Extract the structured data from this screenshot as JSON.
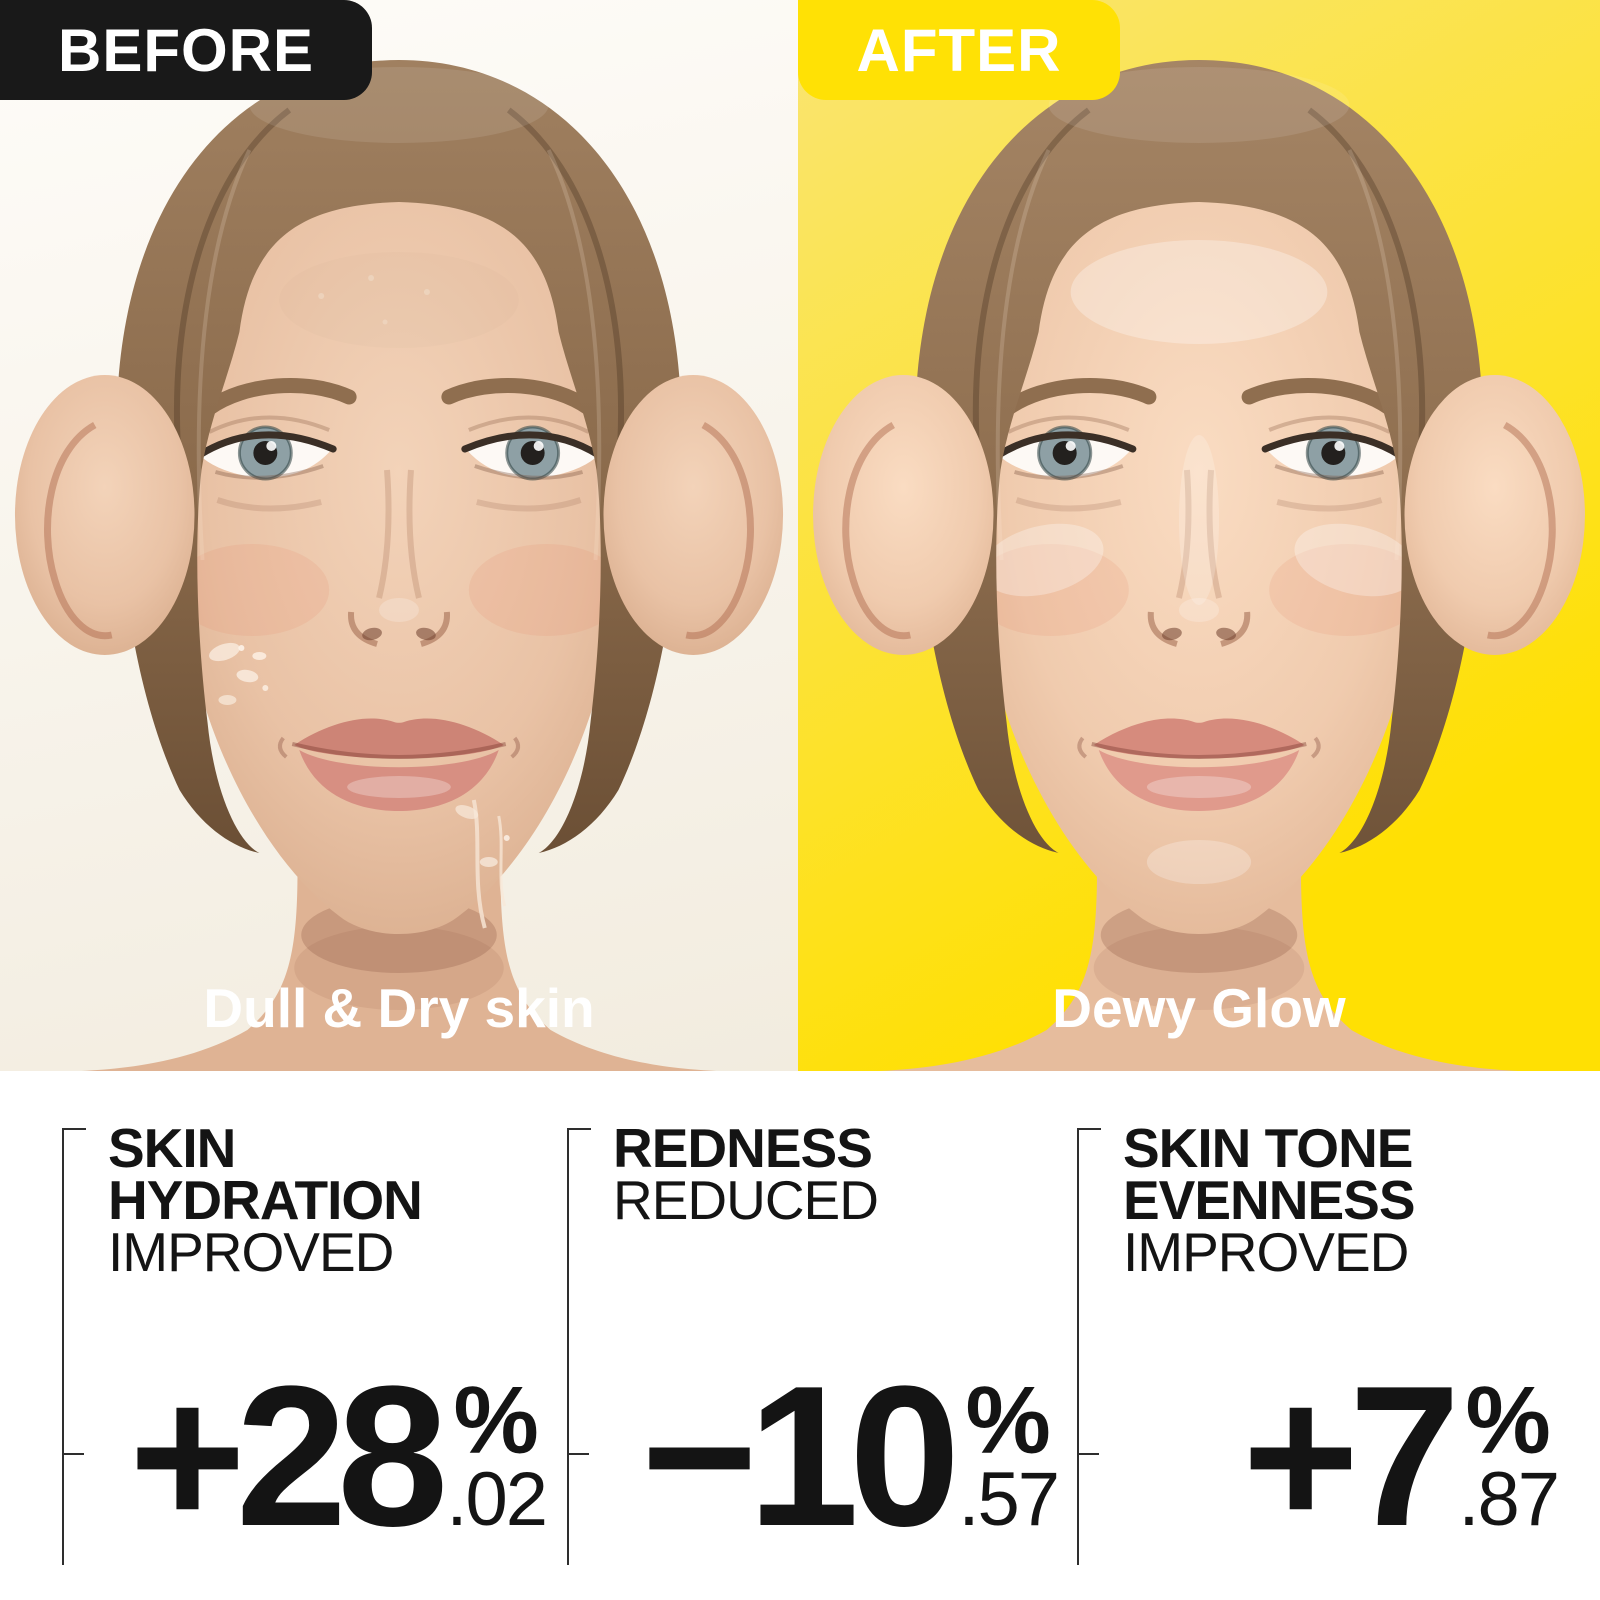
{
  "panels": {
    "before": {
      "label": "BEFORE",
      "caption": "Dull & Dry skin",
      "label_bg": "#191919",
      "label_text_color": "#FFFFFF",
      "background_top": "#FEFCF8",
      "background_bottom": "#F2ECDF"
    },
    "after": {
      "label": "AFTER",
      "caption": "Dewy Glow",
      "label_bg": "#FFE105",
      "label_text_color": "#FFFFFF",
      "background_top": "#F9E573",
      "background_bottom": "#FFE003"
    }
  },
  "stats": [
    {
      "heading_line1": "SKIN",
      "heading_line2": "HYDRATION",
      "heading_line3": "IMPROVED",
      "number": "+28",
      "percent_sign": "%",
      "decimal": ".02"
    },
    {
      "heading_line1": "REDNESS",
      "heading_line2": "REDUCED",
      "number": "−10",
      "percent_sign": "%",
      "decimal": ".57"
    },
    {
      "heading_line1": "SKIN TONE",
      "heading_line2": "EVENNESS",
      "heading_line3": "IMPROVED",
      "number": "+7",
      "percent_sign": "%",
      "decimal": ".87"
    }
  ],
  "stats_style": {
    "text_color": "#141414",
    "bracket_color": "#2E2E2E",
    "background": "#FFFFFF"
  },
  "portraits": {
    "before": {
      "skin_light": "#F3D3B9",
      "skin_mid": "#E9C2A5",
      "skin_edge": "#D8AC8C",
      "neck": "#DFB394",
      "hair_light": "#A08060",
      "hair_mid": "#8A6A4B",
      "hair_dark": "#6B4F35",
      "brow": "#8F6E4F",
      "iris": "#8EA0A5",
      "lip_upper": "#CD8476",
      "lip_lower": "#D78F82",
      "dry_opacity": 1,
      "glow_opacity": 0
    },
    "after": {
      "skin_light": "#FADCC2",
      "skin_mid": "#F0CBAE",
      "skin_edge": "#E0B494",
      "neck": "#E6BC9D",
      "hair_light": "#A58565",
      "hair_mid": "#8E6E4F",
      "hair_dark": "#6F5339",
      "brow": "#8F6E4F",
      "iris": "#8EA0A5",
      "lip_upper": "#D68B7D",
      "lip_lower": "#E09A8C",
      "dry_opacity": 0,
      "glow_opacity": 1
    }
  }
}
